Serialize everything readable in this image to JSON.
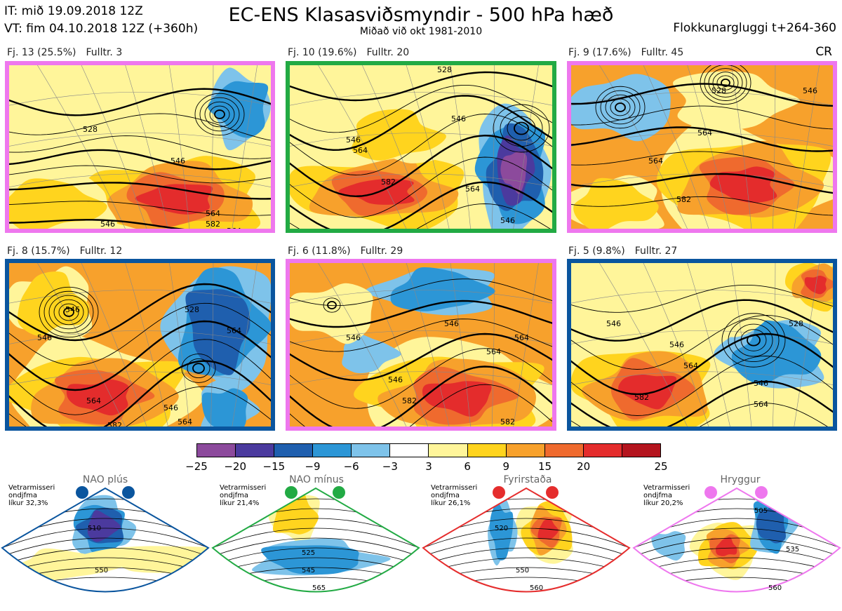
{
  "header": {
    "it_line": "IT: mið 19.09.2018 12Z",
    "vt_line": "VT: fim 04.10.2018 12Z  (+360h)",
    "title": "EC-ENS Klasasviðsmyndir - 500 hPa hæð",
    "subtitle": "Miðað við okt 1981-2010",
    "window": "Flokkunargluggi t+264-360",
    "cr": "CR"
  },
  "panels": [
    {
      "label": "Fj. 13 (25.5%)",
      "rep": "Fulltr. 3",
      "border": "#ee77ee",
      "contour_labels": [
        "528",
        "546",
        "564",
        "546",
        "564",
        "582"
      ]
    },
    {
      "label": "Fj. 10 (19.6%)",
      "rep": "Fulltr. 20",
      "border": "#22aa44",
      "contour_labels": [
        "528",
        "546",
        "564",
        "582",
        "546",
        "564",
        "546"
      ]
    },
    {
      "label": "Fj. 9 (17.6%)",
      "rep": "Fulltr. 45",
      "border": "#ee77ee",
      "contour_labels": [
        "528",
        "546",
        "564",
        "564",
        "582"
      ]
    },
    {
      "label": "Fj. 8 (15.7%)",
      "rep": "Fulltr. 12",
      "border": "#0a559e",
      "contour_labels": [
        "546",
        "564",
        "546",
        "528",
        "564",
        "546",
        "564",
        "582"
      ]
    },
    {
      "label": "Fj. 6 (11.8%)",
      "rep": "Fulltr. 29",
      "border": "#ee77ee",
      "contour_labels": [
        "546",
        "546",
        "564",
        "546",
        "564",
        "582",
        "582"
      ]
    },
    {
      "label": "Fj. 5 (9.8%)",
      "rep": "Fulltr. 27",
      "border": "#0a559e",
      "contour_labels": [
        "546",
        "528",
        "546",
        "564",
        "546",
        "582",
        "564"
      ]
    }
  ],
  "colorbar": {
    "colors": [
      "#8c4a9c",
      "#4b3a9e",
      "#1f5fae",
      "#2c96d6",
      "#7ec3ea",
      "#ffffff",
      "#fff59a",
      "#ffd41e",
      "#f7a12c",
      "#ef6a2e",
      "#e42c2c",
      "#b4141e"
    ],
    "ticks": [
      "−25",
      "−20",
      "−15",
      "−9",
      "−6",
      "−3",
      "3",
      "6",
      "9",
      "15",
      "20",
      "25"
    ]
  },
  "regimes": [
    {
      "name": "NAO plús",
      "info": [
        "Vetrarmisseri",
        "ondjfma",
        "líkur 32,3%"
      ],
      "color": "#0a559e",
      "contour_labels": [
        "510",
        "550"
      ]
    },
    {
      "name": "NAO mínus",
      "info": [
        "Vetrarmisseri",
        "ondjfma",
        "líkur 21,4%"
      ],
      "color": "#22aa44",
      "contour_labels": [
        "525",
        "545",
        "565"
      ]
    },
    {
      "name": "Fyrirstaða",
      "info": [
        "Vetrarmisseri",
        "ondjfma",
        "líkur 26,1%"
      ],
      "color": "#e52d2d",
      "contour_labels": [
        "520",
        "550",
        "560"
      ]
    },
    {
      "name": "Hryggur",
      "info": [
        "Vetrarmisseri",
        "ondjfma",
        "líkur 20,2%"
      ],
      "color": "#ee77ee",
      "contour_labels": [
        "505",
        "535",
        "560"
      ]
    }
  ],
  "chart_data": {
    "type": "heatmap",
    "title": "EC-ENS Klasasviðsmyndir - 500 hPa hæð",
    "subtitle": "Miðað við okt 1981-2010",
    "colorbar_ticks": [
      -25,
      -20,
      -15,
      -9,
      -6,
      -3,
      3,
      6,
      9,
      15,
      20,
      25
    ],
    "clusters": [
      {
        "cluster": 13,
        "probability_pct": 25.5,
        "representative": 3
      },
      {
        "cluster": 10,
        "probability_pct": 19.6,
        "representative": 20
      },
      {
        "cluster": 9,
        "probability_pct": 17.6,
        "representative": 45
      },
      {
        "cluster": 8,
        "probability_pct": 15.7,
        "representative": 12
      },
      {
        "cluster": 6,
        "probability_pct": 11.8,
        "representative": 29
      },
      {
        "cluster": 5,
        "probability_pct": 9.8,
        "representative": 27
      }
    ],
    "regimes": [
      {
        "name": "NAO plús",
        "probability_pct": 32.3
      },
      {
        "name": "NAO mínus",
        "probability_pct": 21.4
      },
      {
        "name": "Fyrirstaða",
        "probability_pct": 26.1
      },
      {
        "name": "Hryggur",
        "probability_pct": 20.2
      }
    ]
  }
}
